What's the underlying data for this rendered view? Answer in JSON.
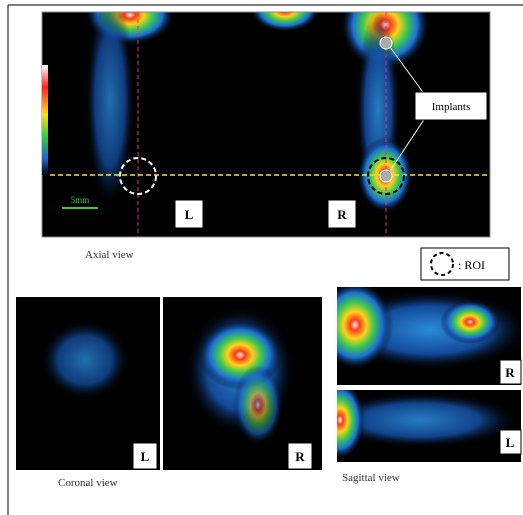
{
  "axial": {
    "scale_bar": "5mm",
    "left_label": "L",
    "right_label": "R",
    "annotation": "Implants",
    "caption": "Axial view"
  },
  "legend": {
    "label": ": ROI"
  },
  "coronal": {
    "left_label": "L",
    "right_label": "R",
    "caption": "Coronal view"
  },
  "sagittal": {
    "top_label": "R",
    "bottom_label": "L",
    "caption": "Sagittal view"
  }
}
